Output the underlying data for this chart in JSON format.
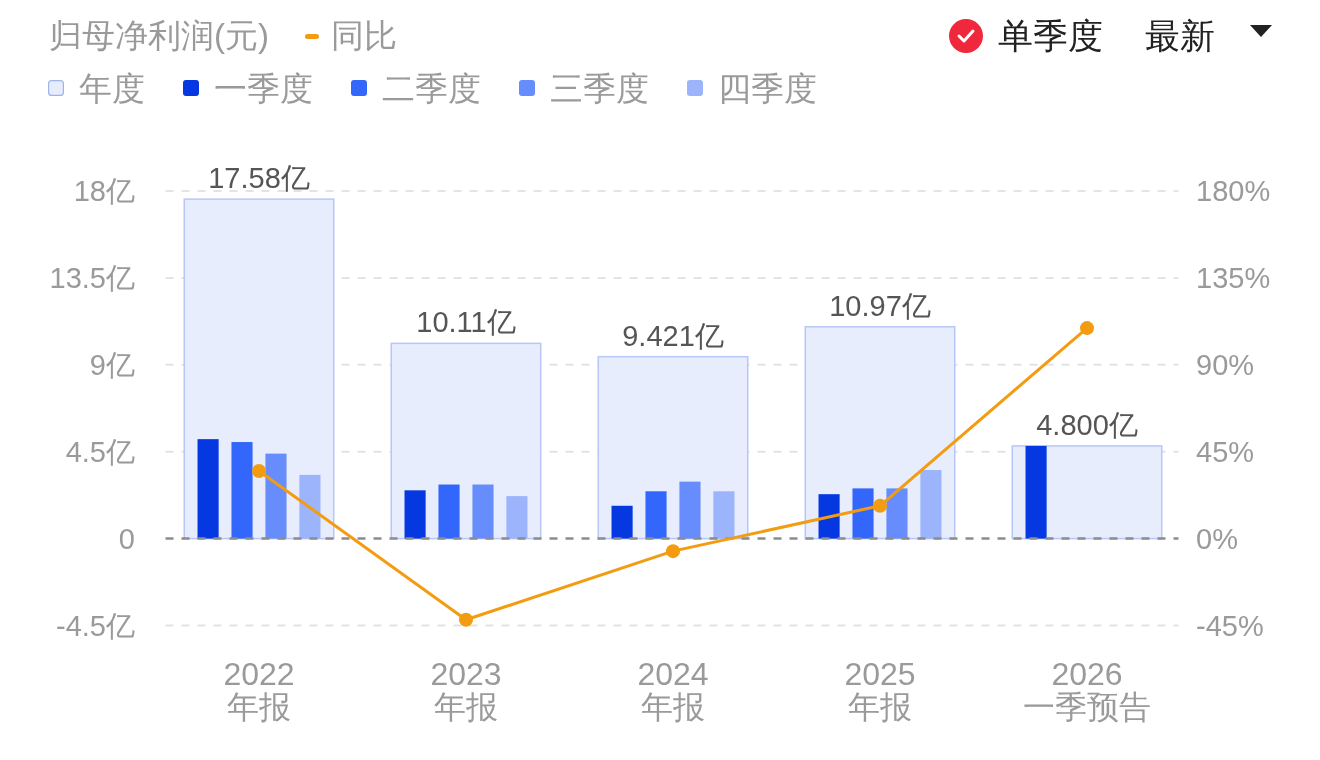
{
  "chart_data": {
    "type": "bar",
    "title": "归母净利润(元)",
    "categories": [
      "2022\n年报",
      "2023\n年报",
      "2024\n年报",
      "2025\n年报",
      "2026\n一季预告"
    ],
    "series": [
      {
        "name": "年度",
        "color": "#e7edfd",
        "values": [
          17.58,
          10.11,
          9.421,
          10.97,
          4.8
        ],
        "value_labels": [
          "17.58亿",
          "10.11亿",
          "9.421亿",
          "10.97亿",
          "4.800亿"
        ]
      },
      {
        "name": "一季度",
        "color": "#0538e0",
        "values": [
          5.15,
          2.5,
          1.7,
          2.3,
          4.8
        ]
      },
      {
        "name": "二季度",
        "color": "#3366fb",
        "values": [
          5.0,
          2.8,
          2.45,
          2.6,
          null
        ]
      },
      {
        "name": "三季度",
        "color": "#668dfb",
        "values": [
          4.4,
          2.8,
          2.95,
          2.6,
          null
        ]
      },
      {
        "name": "四季度",
        "color": "#9cb4fc",
        "values": [
          3.3,
          2.2,
          2.45,
          3.55,
          null
        ]
      },
      {
        "name": "同比",
        "type": "line",
        "axis": "y2",
        "color": "#f39c12",
        "values": [
          35,
          -42,
          -6.5,
          17,
          109
        ]
      }
    ],
    "ylim": [
      -4.5,
      18
    ],
    "yticks": [
      {
        "value": -4.5,
        "label": "-4.5亿"
      },
      0,
      {
        "value": 4.5,
        "label": "4.5亿"
      },
      {
        "value": 9,
        "label": "9亿"
      },
      {
        "value": 13.5,
        "label": "13.5亿"
      },
      {
        "value": 18,
        "label": "18亿"
      }
    ],
    "y2lim": [
      -45,
      180
    ],
    "y2ticks": [
      {
        "value": -45,
        "label": "-45%"
      },
      {
        "value": 0,
        "label": "0%"
      },
      {
        "value": 45,
        "label": "45%"
      },
      {
        "value": 90,
        "label": "90%"
      },
      {
        "value": 135,
        "label": "135%"
      },
      {
        "value": 180,
        "label": "180%"
      }
    ],
    "ref_lines": [
      {
        "axis": "y",
        "value": 0,
        "color": "#8c8c8c",
        "line_style": "dashed"
      }
    ],
    "grid": "y",
    "legend": "top left",
    "marker": "circle",
    "annotations": [
      "单季度",
      "最新"
    ]
  }
}
